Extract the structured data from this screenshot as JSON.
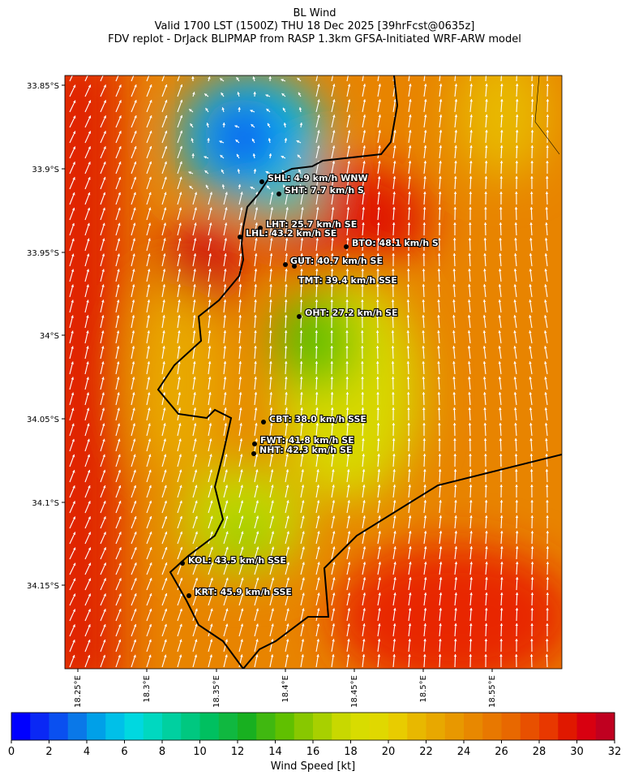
{
  "title": [
    "BL Wind",
    "Valid 1700 LST (1500Z) THU 18 Dec 2025 [39hrFcst@0635z]",
    "FDV replot - DrJack BLIPMAP from RASP 1.3km GFSA-Initiated WRF-ARW model"
  ],
  "map": {
    "lat_ticks": [
      "33.85°S",
      "33.9°S",
      "33.95°S",
      "34°S",
      "34.05°S",
      "34.1°S",
      "34.15°S"
    ],
    "lon_ticks": [
      "18.25°E",
      "18.3°E",
      "18.35°E",
      "18.4°E",
      "18.45°E",
      "18.5°E",
      "18.55°E"
    ],
    "stations": [
      "SHL: 4.9 km/h WNW",
      "SHT: 7.7 km/h S",
      "LHT: 25.7 km/h SE",
      "LHL: 43.2 km/h SE",
      "BTO: 48.1 km/h S",
      "GUT: 40.7 km/h SE",
      "TMT: 39.4 km/h SSE",
      "OHT: 27.2 km/h SE",
      "CBT: 38.0 km/h SSE",
      "FWT: 41.8 km/h SE",
      "NHT: 42.3 km/h SE",
      "KOL: 43.5 km/h SSE",
      "KRT: 45.9 km/h SSE"
    ]
  },
  "colorbar": {
    "label": "Wind Speed [kt]",
    "clim": [
      0,
      32
    ],
    "ticks": [
      0,
      2,
      4,
      6,
      8,
      10,
      12,
      14,
      16,
      18,
      20,
      22,
      24,
      26,
      28,
      30,
      32
    ],
    "colors": [
      "#0000ff",
      "#0a28f5",
      "#0a50f0",
      "#0a78e8",
      "#00a0e8",
      "#00c0e8",
      "#00d8e0",
      "#00d8c0",
      "#00d0a0",
      "#00c880",
      "#00c060",
      "#10b840",
      "#18b020",
      "#40b810",
      "#60c000",
      "#88c800",
      "#a8d000",
      "#c8d800",
      "#d8dc00",
      "#e0d800",
      "#e8cc00",
      "#e8b800",
      "#e8a800",
      "#e89800",
      "#e88800",
      "#e87800",
      "#e86800",
      "#e85000",
      "#e83800",
      "#e01800",
      "#d80010",
      "#c00020"
    ]
  }
}
